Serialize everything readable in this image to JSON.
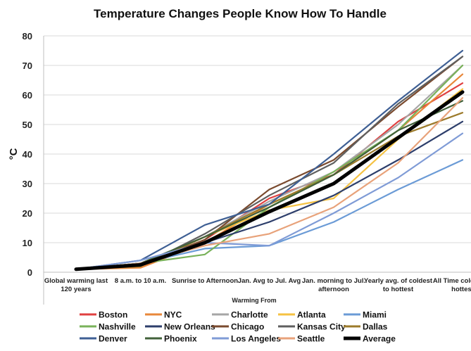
{
  "chart_data": {
    "type": "line",
    "title": "Temperature Changes People Know How To Handle",
    "xlabel": "Warming From",
    "ylabel": "°C",
    "ylim": [
      0,
      80
    ],
    "yticks": [
      0,
      10,
      20,
      30,
      40,
      50,
      60,
      70,
      80
    ],
    "grid": true,
    "legend_position": "bottom",
    "categories": [
      [
        "Global warming last",
        "120 years"
      ],
      [
        "8 a.m. to 10 a.m."
      ],
      [
        "Sunrise to Afternoon"
      ],
      [
        "Jan. Avg to Jul. Avg"
      ],
      [
        "Jan. morning to Jul.",
        "afternoon"
      ],
      [
        "Yearly avg. of coldest",
        "to hottest"
      ],
      [
        "All Time coldest to",
        "hottest"
      ]
    ],
    "series": [
      {
        "name": "Boston",
        "color": "#e04040",
        "values": [
          1,
          2,
          11,
          25,
          33,
          51,
          64
        ]
      },
      {
        "name": "NYC",
        "color": "#e8873a",
        "values": [
          1,
          1.5,
          10,
          23,
          33,
          48,
          67
        ]
      },
      {
        "name": "Charlotte",
        "color": "#a6a6a6",
        "values": [
          1,
          2,
          12,
          24,
          34,
          50,
          70
        ]
      },
      {
        "name": "Atlanta",
        "color": "#f5c242",
        "values": [
          1,
          2,
          12,
          21,
          25,
          45,
          62
        ]
      },
      {
        "name": "Miami",
        "color": "#6b9bd6",
        "values": [
          1,
          3,
          8,
          9,
          17,
          28,
          38
        ]
      },
      {
        "name": "Nashville",
        "color": "#79b25a",
        "values": [
          1,
          3,
          6,
          22,
          34,
          48,
          70
        ]
      },
      {
        "name": "New Orleans",
        "color": "#2d3e6b",
        "values": [
          1,
          3,
          10,
          17,
          26,
          38,
          51
        ]
      },
      {
        "name": "Chicago",
        "color": "#7a4a2e",
        "values": [
          1,
          2.5,
          11,
          28,
          38,
          56,
          73
        ]
      },
      {
        "name": "Kansas City",
        "color": "#5f5f5f",
        "values": [
          1,
          2,
          13,
          26,
          37,
          57,
          73
        ]
      },
      {
        "name": "Dallas",
        "color": "#9c7a2a",
        "values": [
          1,
          2,
          12,
          23,
          33,
          46,
          54
        ]
      },
      {
        "name": "Denver",
        "color": "#3e5f94",
        "values": [
          1,
          4,
          16,
          23,
          40,
          58,
          75
        ]
      },
      {
        "name": "Phoenix",
        "color": "#41613a",
        "values": [
          1,
          3,
          12,
          22,
          33,
          48,
          58
        ]
      },
      {
        "name": "Los Angeles",
        "color": "#7f9bd6",
        "values": [
          1,
          4,
          10,
          9,
          20,
          32,
          47
        ]
      },
      {
        "name": "Seattle",
        "color": "#e8a27a",
        "values": [
          1,
          3,
          9,
          13,
          22,
          37,
          59
        ]
      },
      {
        "name": "Average",
        "color": "#000000",
        "values": [
          1,
          2.5,
          10,
          20.5,
          30,
          45.5,
          61
        ],
        "bold": true
      }
    ]
  }
}
